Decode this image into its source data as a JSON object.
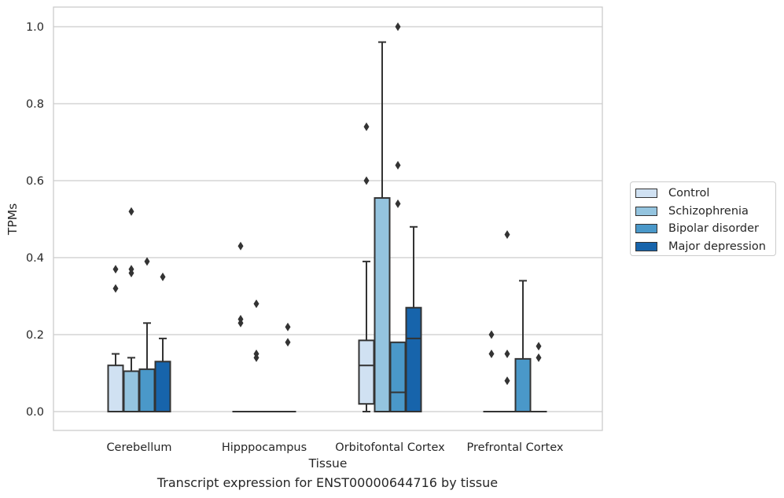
{
  "chart_data": {
    "type": "box",
    "title": "Transcript expression for ENST00000644716 by tissue",
    "xlabel": "Tissue",
    "ylabel": "TPMs",
    "ylim": [
      -0.05,
      1.05
    ],
    "yticks": [
      "0.0",
      "0.2",
      "0.4",
      "0.6",
      "0.8",
      "1.0"
    ],
    "grid": true,
    "legend_position": "right",
    "categories": [
      "Cerebellum",
      "Hipppocampus",
      "Orbitofontal Cortex",
      "Prefrontal Cortex"
    ],
    "series": [
      {
        "name": "Control",
        "color": "#d0e1f2",
        "boxes": [
          {
            "q1": 0,
            "median": 0,
            "q3": 0.12,
            "whisker_low": 0,
            "whisker_high": 0.15,
            "outliers": [
              0.32,
              0.37
            ]
          },
          {
            "q1": 0,
            "median": 0,
            "q3": 0,
            "whisker_low": 0,
            "whisker_high": 0,
            "outliers": [
              0.23,
              0.24,
              0.43
            ]
          },
          {
            "q1": 0.02,
            "median": 0.12,
            "q3": 0.185,
            "whisker_low": 0,
            "whisker_high": 0.39,
            "outliers": [
              0.6,
              0.74
            ]
          },
          {
            "q1": 0,
            "median": 0,
            "q3": 0,
            "whisker_low": 0,
            "whisker_high": 0,
            "outliers": [
              0.15,
              0.2
            ]
          }
        ]
      },
      {
        "name": "Schizophrenia",
        "color": "#94c4df",
        "boxes": [
          {
            "q1": 0,
            "median": 0,
            "q3": 0.105,
            "whisker_low": 0,
            "whisker_high": 0.14,
            "outliers": [
              0.36,
              0.37,
              0.52
            ]
          },
          {
            "q1": 0,
            "median": 0,
            "q3": 0,
            "whisker_low": 0,
            "whisker_high": 0,
            "outliers": [
              0.14,
              0.15,
              0.28
            ]
          },
          {
            "q1": 0,
            "median": 0,
            "q3": 0.555,
            "whisker_low": 0,
            "whisker_high": 0.96,
            "outliers": []
          },
          {
            "q1": 0,
            "median": 0,
            "q3": 0,
            "whisker_low": 0,
            "whisker_high": 0,
            "outliers": [
              0.08,
              0.15,
              0.46
            ]
          }
        ]
      },
      {
        "name": "Bipolar disorder",
        "color": "#4a98c9",
        "boxes": [
          {
            "q1": 0,
            "median": 0,
            "q3": 0.11,
            "whisker_low": 0,
            "whisker_high": 0.23,
            "outliers": [
              0.39
            ]
          },
          {
            "q1": 0,
            "median": 0,
            "q3": 0,
            "whisker_low": 0,
            "whisker_high": 0,
            "outliers": []
          },
          {
            "q1": 0,
            "median": 0.05,
            "q3": 0.18,
            "whisker_low": 0,
            "whisker_high": 0.18,
            "outliers": [
              0.54,
              0.64,
              1.0
            ]
          },
          {
            "q1": 0,
            "median": 0,
            "q3": 0.137,
            "whisker_low": 0,
            "whisker_high": 0.34,
            "outliers": []
          }
        ]
      },
      {
        "name": "Major depression",
        "color": "#1764ab",
        "boxes": [
          {
            "q1": 0,
            "median": 0,
            "q3": 0.13,
            "whisker_low": 0,
            "whisker_high": 0.19,
            "outliers": [
              0.35
            ]
          },
          {
            "q1": 0,
            "median": 0,
            "q3": 0,
            "whisker_low": 0,
            "whisker_high": 0,
            "outliers": [
              0.18,
              0.22
            ]
          },
          {
            "q1": 0,
            "median": 0.19,
            "q3": 0.27,
            "whisker_low": 0,
            "whisker_high": 0.48,
            "outliers": []
          },
          {
            "q1": 0,
            "median": 0,
            "q3": 0,
            "whisker_low": 0,
            "whisker_high": 0,
            "outliers": [
              0.14,
              0.17
            ]
          }
        ]
      }
    ]
  }
}
